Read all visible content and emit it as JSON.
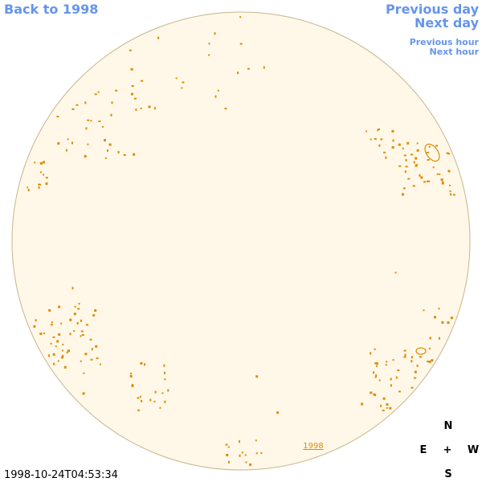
{
  "nav": {
    "back": "Back to 1998",
    "previous_day": "Previous day",
    "next_day": "Next day",
    "previous_hour": "Previous hour",
    "next_hour": "Next hour"
  },
  "compass": {
    "north": "N",
    "east": "E",
    "center": "+",
    "west": "W",
    "south": "S"
  },
  "timestamp": "1998-10-24T04:53:34",
  "region_label": "1998"
}
